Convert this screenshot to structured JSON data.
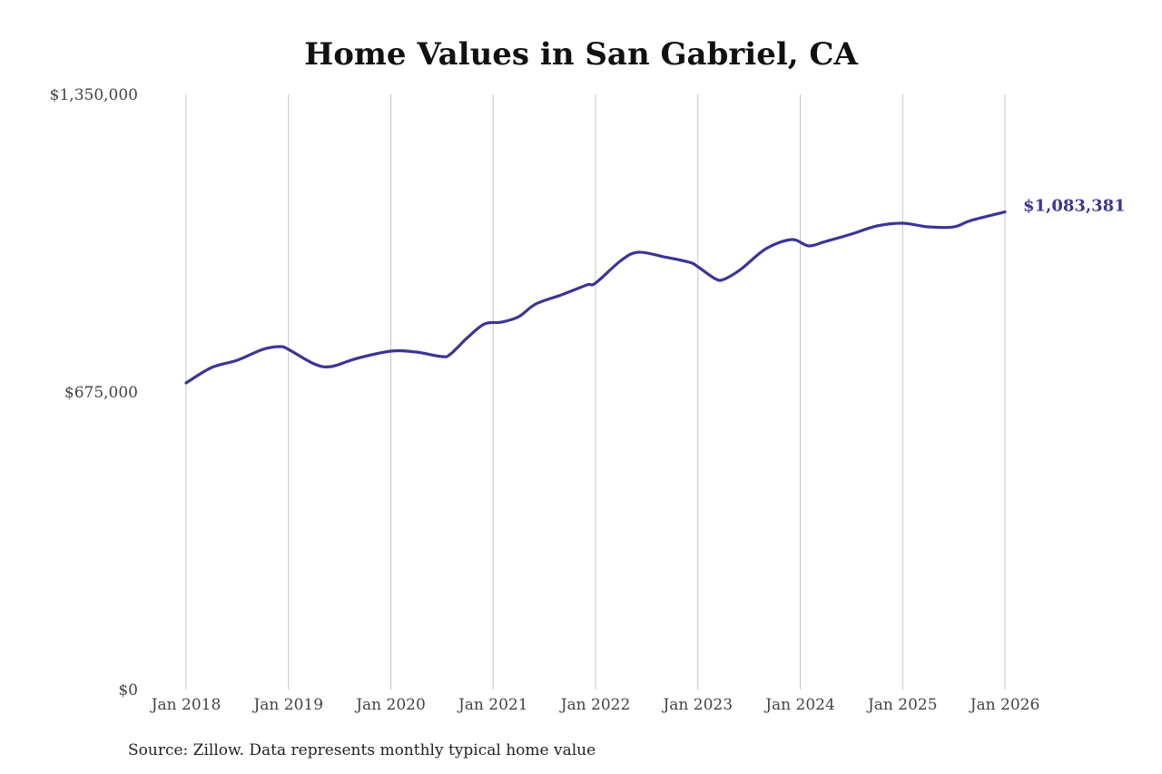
{
  "chart_data": {
    "type": "line",
    "title": "Home Values in San Gabriel, CA",
    "source": "Source: Zillow. Data represents monthly typical home value",
    "xlabel": "",
    "ylabel": "",
    "ylim": [
      0,
      1350000
    ],
    "xlim": [
      "2018-01",
      "2026-01"
    ],
    "y_ticks": [
      {
        "value": 0,
        "label": "$0"
      },
      {
        "value": 675000,
        "label": "$675,000"
      },
      {
        "value": 1350000,
        "label": "$1,350,000"
      }
    ],
    "x_ticks": [
      {
        "value": "2018-01",
        "label": "Jan 2018"
      },
      {
        "value": "2019-01",
        "label": "Jan 2019"
      },
      {
        "value": "2020-01",
        "label": "Jan 2020"
      },
      {
        "value": "2021-01",
        "label": "Jan 2021"
      },
      {
        "value": "2022-01",
        "label": "Jan 2022"
      },
      {
        "value": "2023-01",
        "label": "Jan 2023"
      },
      {
        "value": "2024-01",
        "label": "Jan 2024"
      },
      {
        "value": "2025-01",
        "label": "Jan 2025"
      },
      {
        "value": "2026-01",
        "label": "Jan 2026"
      }
    ],
    "grid": "vertical",
    "line_color": "#3a3596",
    "end_label": "$1,083,381",
    "x": [
      "2018-01",
      "2018-04",
      "2018-07",
      "2018-10",
      "2018-12",
      "2019-01",
      "2019-04",
      "2019-06",
      "2019-09",
      "2020-01",
      "2020-04",
      "2020-07",
      "2020-08",
      "2020-10",
      "2020-12",
      "2021-02",
      "2021-04",
      "2021-06",
      "2021-09",
      "2021-12",
      "2022-01",
      "2022-04",
      "2022-06",
      "2022-09",
      "2022-12",
      "2023-01",
      "2023-03",
      "2023-04",
      "2023-06",
      "2023-09",
      "2023-12",
      "2024-02",
      "2024-04",
      "2024-07",
      "2024-10",
      "2025-01",
      "2025-04",
      "2025-07",
      "2025-09",
      "2026-01"
    ],
    "values": [
      695600,
      730600,
      747000,
      771700,
      777900,
      771700,
      738800,
      732600,
      751100,
      767600,
      765500,
      755300,
      761000,
      798500,
      829400,
      833500,
      845800,
      874600,
      895200,
      917800,
      922000,
      973400,
      991900,
      981600,
      969300,
      959000,
      932200,
      930200,
      952800,
      1000100,
      1020700,
      1006300,
      1016600,
      1033100,
      1051600,
      1057800,
      1049500,
      1049500,
      1063900,
      1083381
    ]
  }
}
